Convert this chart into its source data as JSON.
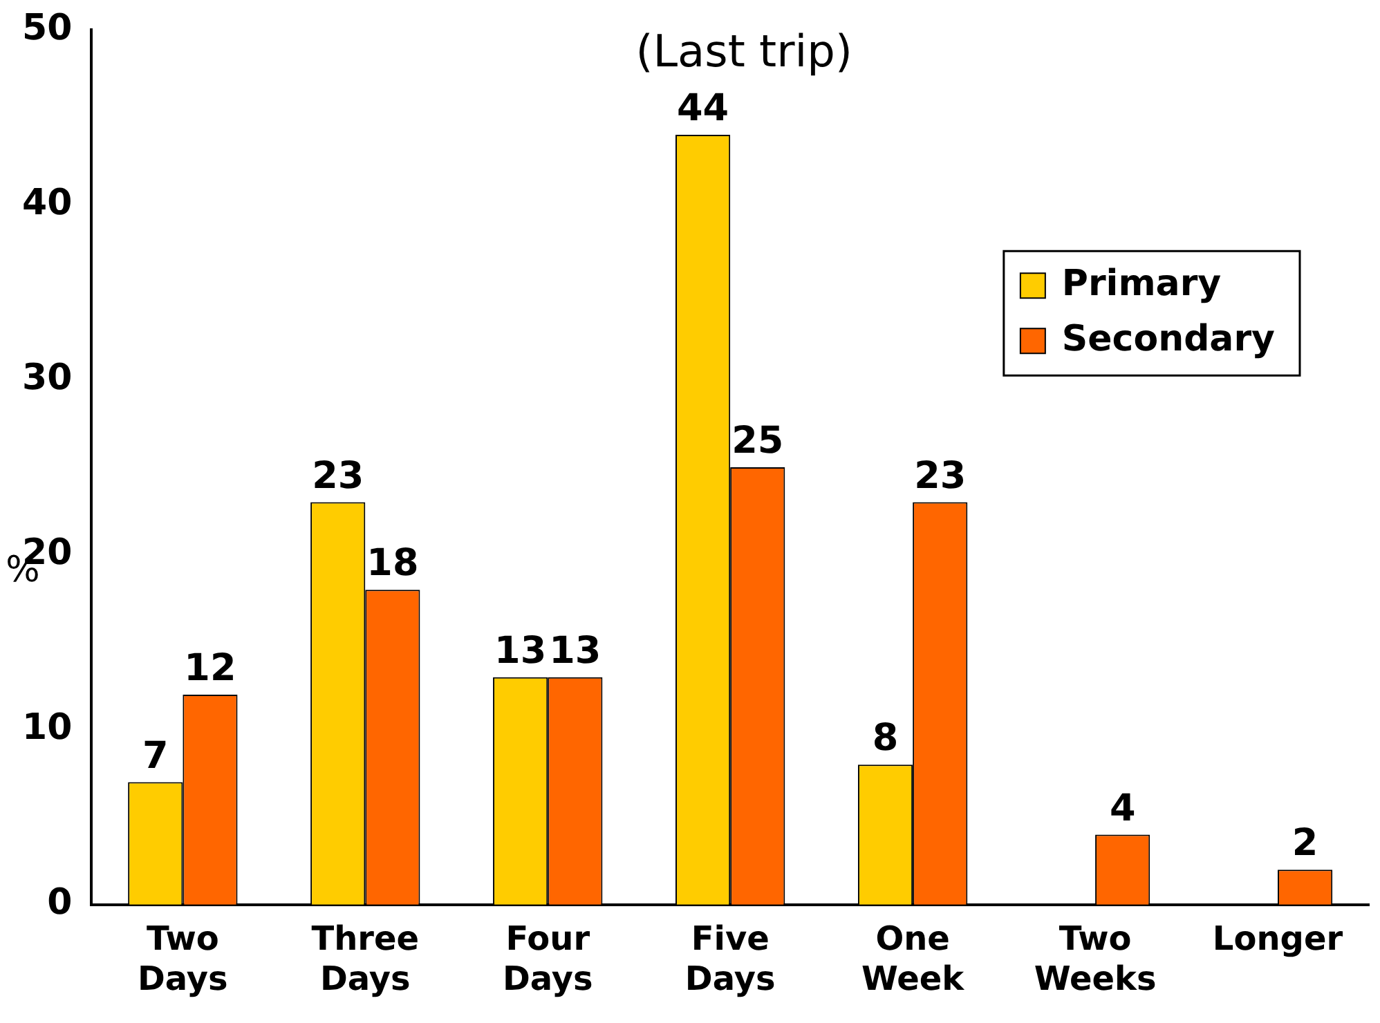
{
  "chart_data": {
    "type": "bar",
    "title": "(Last trip)",
    "ylabel": "%",
    "categories": [
      "Two Days",
      "Three Days",
      "Four Days",
      "Five Days",
      "One Week",
      "Two Weeks",
      "Longer"
    ],
    "series": [
      {
        "name": "Primary",
        "color": "#ffcc00",
        "values": [
          7,
          23,
          13,
          44,
          8,
          null,
          null
        ]
      },
      {
        "name": "Secondary",
        "color": "#ff6600",
        "values": [
          12,
          18,
          13,
          25,
          23,
          4,
          2
        ]
      }
    ],
    "ylim": [
      0,
      50
    ],
    "yticks": [
      0,
      10,
      20,
      30,
      40,
      50
    ],
    "grid": false,
    "legend": "top right",
    "data_labels": true
  }
}
